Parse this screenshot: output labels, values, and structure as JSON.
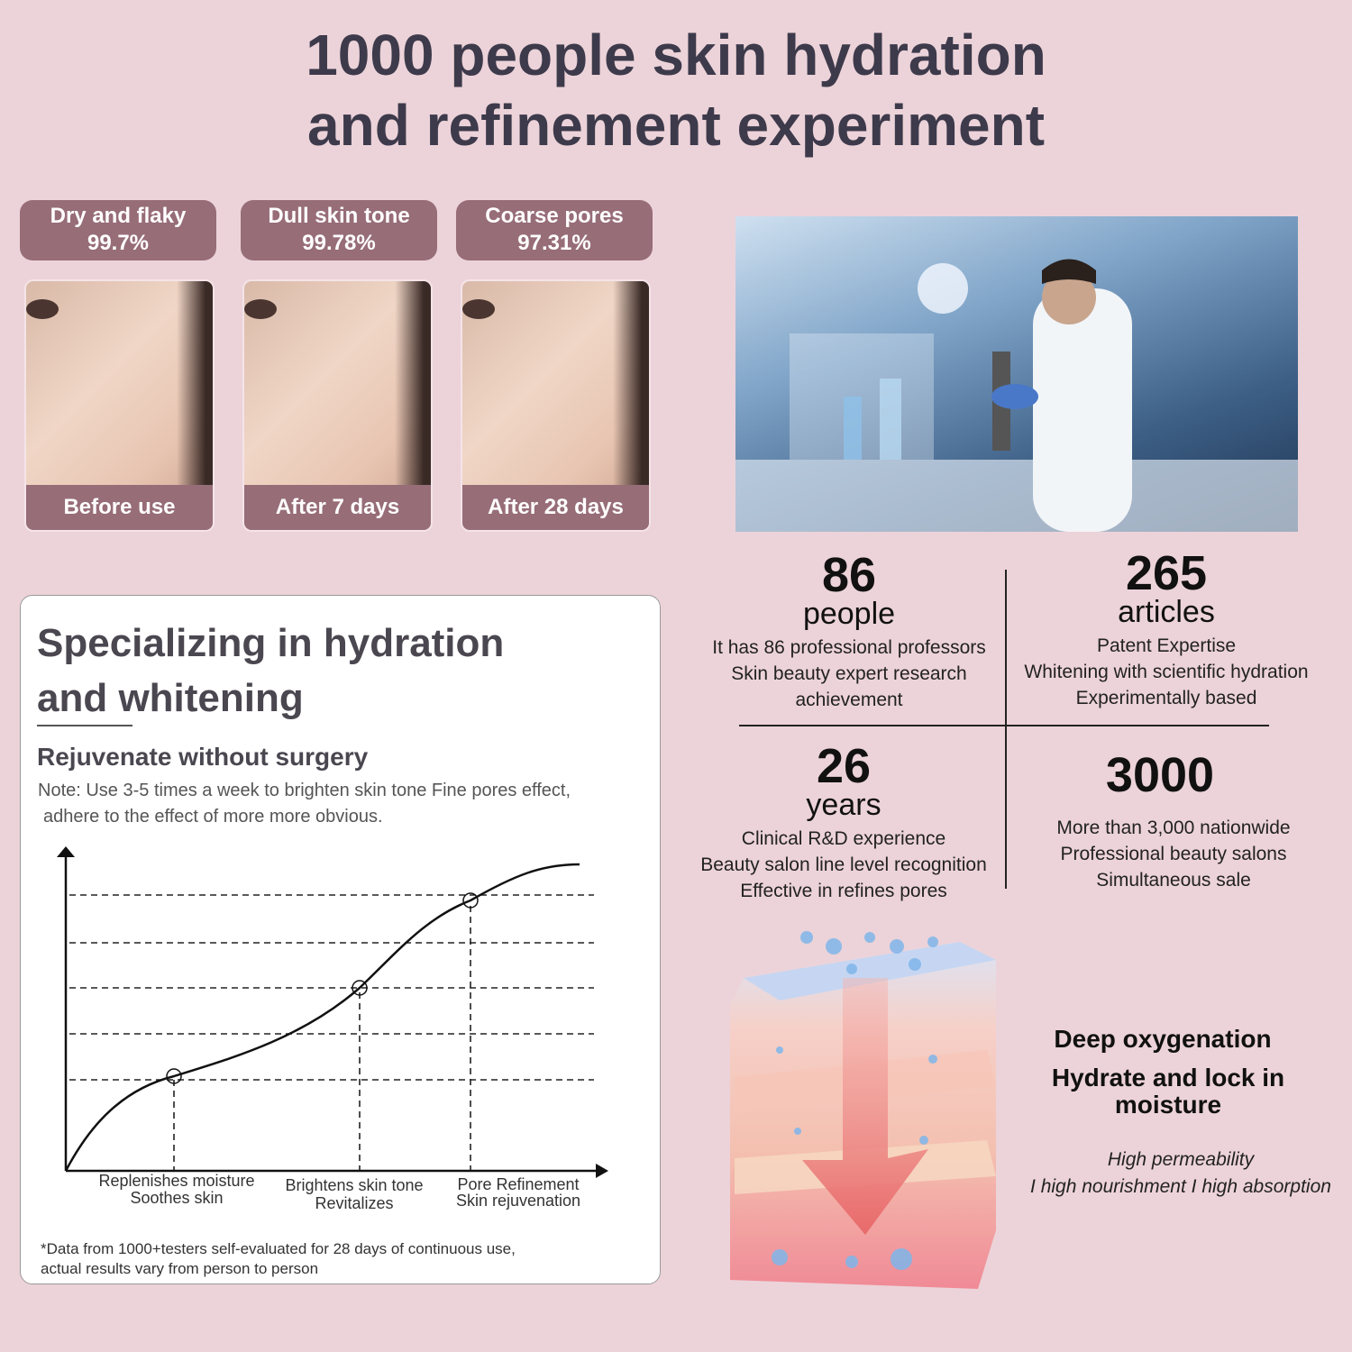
{
  "header": {
    "title_line1": "1000 people skin hydration",
    "title_line2": "and refinement experiment"
  },
  "badges": [
    {
      "label": "Dry and flaky",
      "value": "99.7%"
    },
    {
      "label": "Dull skin tone",
      "value": "99.78%"
    },
    {
      "label": "Coarse pores",
      "value": "97.31%"
    }
  ],
  "photos": [
    {
      "caption": "Before use"
    },
    {
      "caption": "After 7 days"
    },
    {
      "caption": "After 28 days"
    }
  ],
  "stats": [
    {
      "number": "86",
      "unit": "people",
      "lines": [
        "It has 86 professional professors",
        "Skin beauty expert research",
        "achievement"
      ]
    },
    {
      "number": "265",
      "unit": "articles",
      "lines": [
        "Patent Expertise",
        "Whitening with scientific hydration",
        "Experimentally based"
      ]
    },
    {
      "number": "26",
      "unit": "years",
      "lines": [
        "Clinical R&D experience",
        "Beauty salon line level recognition",
        "Effective in refines pores"
      ]
    },
    {
      "number": "3000",
      "unit": "",
      "lines": [
        "More than 3,000 nationwide",
        "Professional beauty salons",
        "Simultaneous sale"
      ]
    }
  ],
  "card": {
    "heading_line1": "Specializing in hydration",
    "heading_line2": "and whitening",
    "subheading": "Rejuvenate without surgery",
    "note_line1": "Note: Use 3-5 times a week to brighten skin tone Fine pores effect,",
    "note_line2": "adhere to the effect of more more obvious.",
    "chart_labels": [
      [
        "Replenishes moisture",
        "Soothes skin"
      ],
      [
        "Brightens skin tone",
        "Revitalizes"
      ],
      [
        "Pore Refinement",
        "Skin rejuvenation"
      ]
    ],
    "footnote_line1": "*Data from 1000+testers self-evaluated for 28 days of continuous use,",
    "footnote_line2": "actual results vary from person to person"
  },
  "benefits": {
    "line1": "Deep oxygenation",
    "line2": "Hydrate and lock in",
    "line3": "moisture",
    "italic1": "High permeability",
    "italic2": "I high nourishment I high absorption"
  },
  "colors": {
    "background": "#ecd3d9",
    "badge": "#976d78",
    "title": "#3d3a4b"
  }
}
